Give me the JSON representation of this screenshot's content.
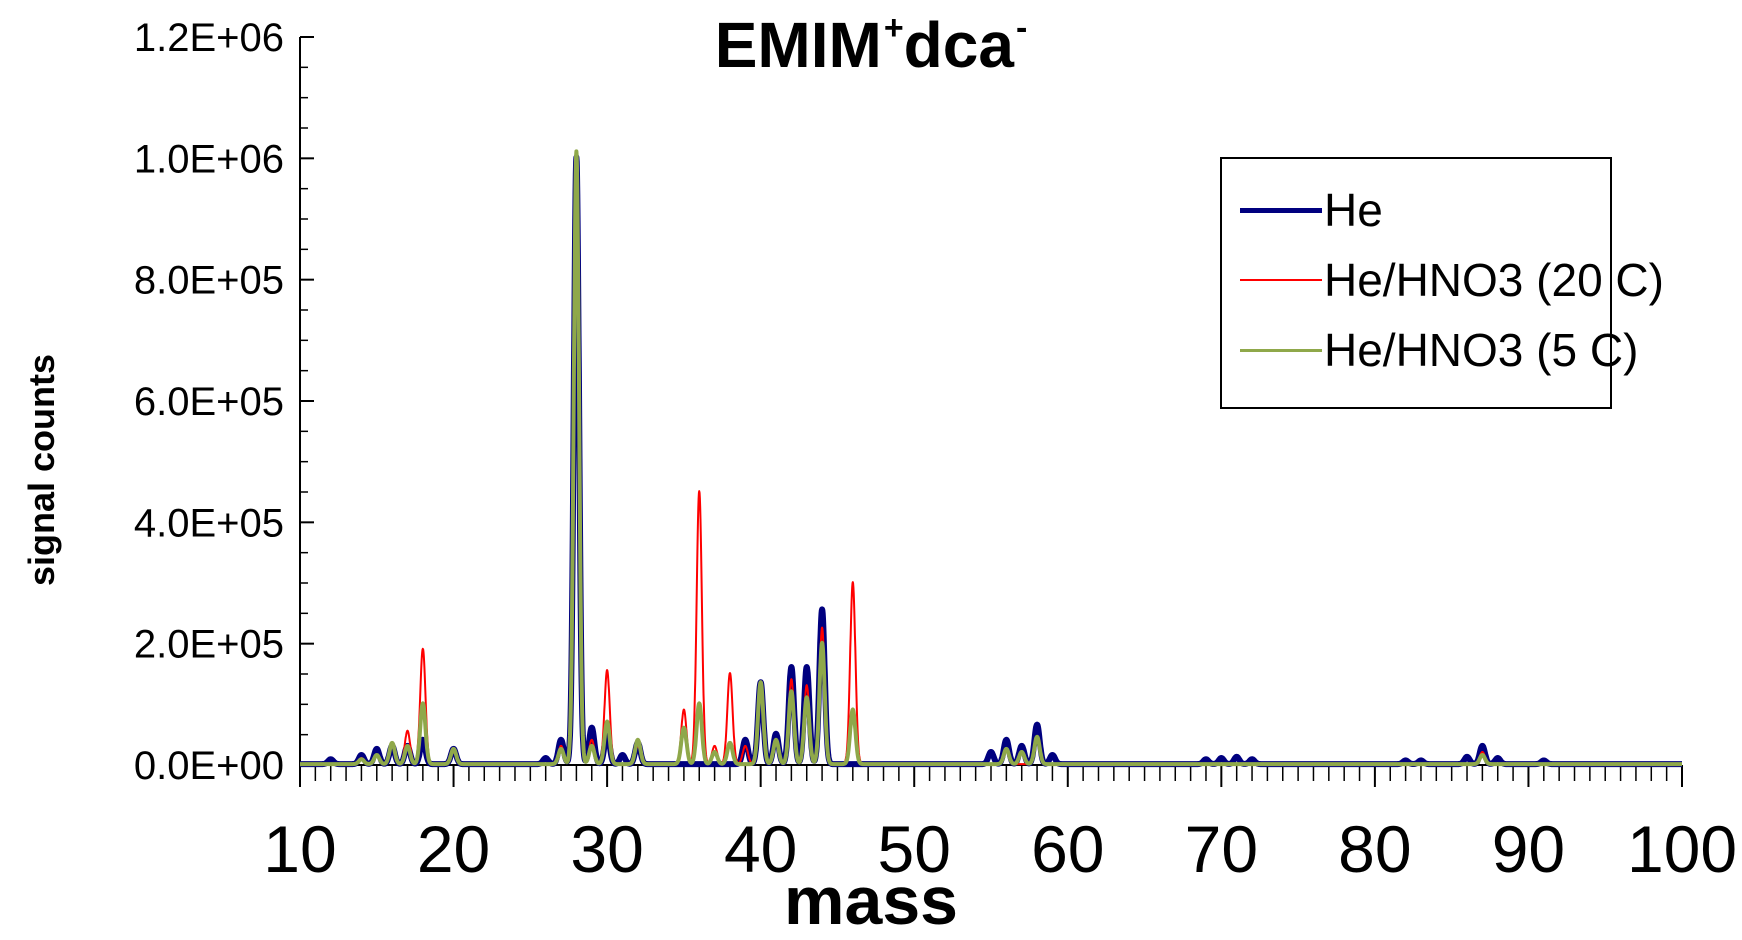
{
  "chart_data": {
    "type": "line",
    "title": "EMIM",
    "title_sup_1": "+",
    "title_suffix": "dca",
    "title_sup_2": "-",
    "xlabel": "mass",
    "ylabel": "signal counts",
    "xlim": [
      10,
      100
    ],
    "ylim": [
      0,
      1200000
    ],
    "x_ticks": [
      "10",
      "20",
      "30",
      "40",
      "50",
      "60",
      "70",
      "80",
      "90",
      "100"
    ],
    "y_ticks": [
      "0.0E+00",
      "2.0E+05",
      "4.0E+05",
      "6.0E+05",
      "8.0E+05",
      "1.0E+06",
      "1.2E+06"
    ],
    "grid": false,
    "legend_position": "top-right",
    "series": [
      {
        "name": "He",
        "color": "#00007f",
        "peaks": [
          [
            12,
            8000
          ],
          [
            14,
            15000
          ],
          [
            15,
            25000
          ],
          [
            16,
            30000
          ],
          [
            17,
            30000
          ],
          [
            18,
            40000
          ],
          [
            20,
            25000
          ],
          [
            26,
            10000
          ],
          [
            27,
            40000
          ],
          [
            28,
            1000000
          ],
          [
            29,
            60000
          ],
          [
            30,
            50000
          ],
          [
            31,
            15000
          ],
          [
            32,
            35000
          ],
          [
            39,
            40000
          ],
          [
            40,
            135000
          ],
          [
            41,
            50000
          ],
          [
            42,
            160000
          ],
          [
            43,
            160000
          ],
          [
            44,
            255000
          ],
          [
            55,
            20000
          ],
          [
            56,
            40000
          ],
          [
            57,
            30000
          ],
          [
            58,
            65000
          ],
          [
            59,
            15000
          ],
          [
            69,
            8000
          ],
          [
            70,
            10000
          ],
          [
            71,
            12000
          ],
          [
            72,
            8000
          ],
          [
            82,
            6000
          ],
          [
            83,
            6000
          ],
          [
            86,
            12000
          ],
          [
            87,
            30000
          ],
          [
            88,
            10000
          ],
          [
            91,
            6000
          ]
        ]
      },
      {
        "name": "He/HNO3 (20 C)",
        "color": "#ff0000",
        "peaks": [
          [
            14,
            10000
          ],
          [
            15,
            15000
          ],
          [
            16,
            30000
          ],
          [
            17,
            55000
          ],
          [
            18,
            190000
          ],
          [
            20,
            20000
          ],
          [
            27,
            30000
          ],
          [
            28,
            980000
          ],
          [
            29,
            40000
          ],
          [
            30,
            155000
          ],
          [
            32,
            30000
          ],
          [
            35,
            90000
          ],
          [
            36,
            450000
          ],
          [
            37,
            30000
          ],
          [
            38,
            150000
          ],
          [
            39,
            30000
          ],
          [
            40,
            120000
          ],
          [
            41,
            40000
          ],
          [
            42,
            140000
          ],
          [
            43,
            130000
          ],
          [
            44,
            225000
          ],
          [
            46,
            300000
          ],
          [
            56,
            25000
          ],
          [
            58,
            45000
          ],
          [
            87,
            20000
          ]
        ]
      },
      {
        "name": "He/HNO3 (5 C)",
        "color": "#8fa84a",
        "peaks": [
          [
            14,
            8000
          ],
          [
            15,
            15000
          ],
          [
            16,
            35000
          ],
          [
            17,
            30000
          ],
          [
            18,
            100000
          ],
          [
            20,
            25000
          ],
          [
            27,
            25000
          ],
          [
            28,
            1010000
          ],
          [
            29,
            30000
          ],
          [
            30,
            70000
          ],
          [
            32,
            40000
          ],
          [
            35,
            60000
          ],
          [
            36,
            100000
          ],
          [
            37,
            20000
          ],
          [
            38,
            35000
          ],
          [
            40,
            135000
          ],
          [
            41,
            40000
          ],
          [
            42,
            120000
          ],
          [
            43,
            110000
          ],
          [
            44,
            200000
          ],
          [
            46,
            90000
          ],
          [
            56,
            25000
          ],
          [
            57,
            20000
          ],
          [
            58,
            45000
          ],
          [
            87,
            15000
          ]
        ]
      }
    ]
  }
}
